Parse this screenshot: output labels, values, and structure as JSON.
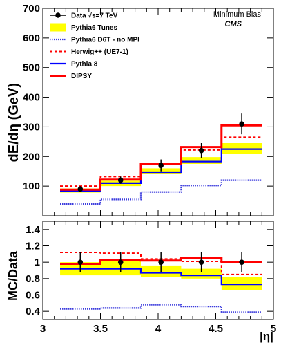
{
  "chart_data": [
    {
      "type": "line",
      "panel": "main",
      "ylabel": "dE/dη (GeV)",
      "xlim": [
        3.0,
        5.0
      ],
      "ylim": [
        0,
        700
      ],
      "yticks": [
        100,
        200,
        300,
        400,
        500,
        600,
        700
      ],
      "bin_edges": [
        3.15,
        3.5,
        3.85,
        4.2,
        4.55,
        4.9
      ],
      "annotations": {
        "line1": "Minimum Bias",
        "line2": "CMS"
      },
      "data": {
        "name": "Data √s=7 TeV",
        "x": [
          3.325,
          3.675,
          4.025,
          4.375,
          4.725
        ],
        "y": [
          90,
          120,
          170,
          220,
          310
        ],
        "err": [
          10,
          12,
          20,
          25,
          35
        ],
        "color": "#000000"
      },
      "band": {
        "name": "Pythia6 Tunes",
        "lo": [
          78,
          100,
          140,
          175,
          208
        ],
        "hi": [
          92,
          118,
          160,
          198,
          245
        ],
        "color": "#ffff00"
      },
      "series": [
        {
          "name": "Pythia6 D6T - no MPI",
          "values": [
            40,
            55,
            80,
            102,
            120
          ],
          "color": "#3b3bdd",
          "style": "dotted"
        },
        {
          "name": "Herwig++ (UE7-1)",
          "values": [
            100,
            132,
            177,
            222,
            265
          ],
          "color": "#ff0000",
          "style": "dashed"
        },
        {
          "name": "Pythia 8",
          "values": [
            83,
            110,
            147,
            183,
            225
          ],
          "color": "#0000ff",
          "style": "solid"
        },
        {
          "name": "DIPSY",
          "values": [
            88,
            122,
            175,
            232,
            305
          ],
          "color": "#ff0000",
          "style": "solid-thick"
        }
      ]
    },
    {
      "type": "line",
      "panel": "ratio",
      "ylabel": "MC/Data",
      "xlabel": "|η|",
      "xlim": [
        3.0,
        5.0
      ],
      "ylim": [
        0.3,
        1.5
      ],
      "yticks": [
        0.4,
        0.6,
        0.8,
        1.0,
        1.2,
        1.4
      ],
      "ytick_labels": [
        "0.4",
        "0.6",
        "0.8",
        "1",
        "1.2",
        "1.4"
      ],
      "xticks": [
        3.0,
        3.5,
        4.0,
        4.5,
        5.0
      ],
      "xtick_labels": [
        "3",
        "3.5",
        "4",
        "4.5",
        "5"
      ],
      "bin_edges": [
        3.15,
        3.5,
        3.85,
        4.2,
        4.55,
        4.9
      ],
      "data": {
        "name": "Data",
        "x": [
          3.325,
          3.675,
          4.025,
          4.375,
          4.725
        ],
        "y": [
          1.0,
          1.0,
          1.0,
          1.0,
          1.0
        ],
        "err": [
          0.12,
          0.12,
          0.12,
          0.12,
          0.12
        ],
        "color": "#000000"
      },
      "band": {
        "name": "Pythia6 Tunes",
        "lo": [
          0.84,
          0.84,
          0.82,
          0.8,
          0.66
        ],
        "hi": [
          1.0,
          1.02,
          0.96,
          0.92,
          0.82
        ],
        "color": "#ffff00"
      },
      "series": [
        {
          "name": "Pythia6 D6T - no MPI",
          "values": [
            0.43,
            0.44,
            0.48,
            0.46,
            0.39
          ],
          "color": "#3b3bdd",
          "style": "dotted"
        },
        {
          "name": "Herwig++ (UE7-1)",
          "values": [
            1.12,
            1.11,
            1.04,
            1.01,
            0.85
          ],
          "color": "#ff0000",
          "style": "dashed"
        },
        {
          "name": "Pythia 8",
          "values": [
            0.92,
            0.92,
            0.87,
            0.84,
            0.73
          ],
          "color": "#0000ff",
          "style": "solid"
        },
        {
          "name": "DIPSY",
          "values": [
            0.98,
            1.03,
            1.02,
            1.05,
            1.0
          ],
          "color": "#ff0000",
          "style": "solid-thick"
        }
      ]
    }
  ]
}
